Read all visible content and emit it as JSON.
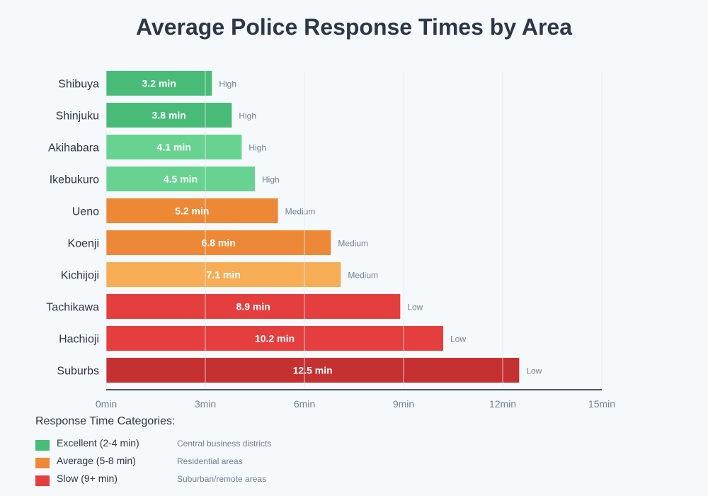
{
  "chart_data": {
    "type": "bar",
    "orientation": "horizontal",
    "title": "Average Police Response Times by Area",
    "categories": [
      "Shibuya",
      "Shinjuku",
      "Akihabara",
      "Ikebukuro",
      "Ueno",
      "Koenji",
      "Kichijoji",
      "Tachikawa",
      "Hachioji",
      "Suburbs"
    ],
    "values": [
      3.2,
      3.8,
      4.1,
      4.5,
      5.2,
      6.8,
      7.1,
      8.9,
      10.2,
      12.5
    ],
    "value_labels": [
      "3.2 min",
      "3.8 min",
      "4.1 min",
      "4.5 min",
      "5.2 min",
      "6.8 min",
      "7.1 min",
      "8.9 min",
      "10.2 min",
      "12.5 min"
    ],
    "ratings": [
      "High",
      "High",
      "High",
      "High",
      "Medium",
      "Medium",
      "Medium",
      "Low",
      "Low",
      "Low"
    ],
    "colors": [
      "#48bb78",
      "#48bb78",
      "#68d391",
      "#68d391",
      "#ed8936",
      "#ed8936",
      "#f6ad55",
      "#e53e3e",
      "#e53e3e",
      "#c53030"
    ],
    "xlim": [
      0,
      15
    ],
    "xticks": [
      0,
      3,
      6,
      9,
      12,
      15
    ],
    "xtick_labels": [
      "0min",
      "3min",
      "6min",
      "9min",
      "12min",
      "15min"
    ],
    "grid": true
  },
  "legend": {
    "title": "Response Time Categories:",
    "items": [
      {
        "label": "Excellent (2-4 min)",
        "desc": "Central business districts",
        "color": "#48bb78"
      },
      {
        "label": "Average (5-8 min)",
        "desc": "Residential areas",
        "color": "#ed8936"
      },
      {
        "label": "Slow (9+ min)",
        "desc": "Suburban/remote areas",
        "color": "#e53e3e"
      }
    ]
  }
}
